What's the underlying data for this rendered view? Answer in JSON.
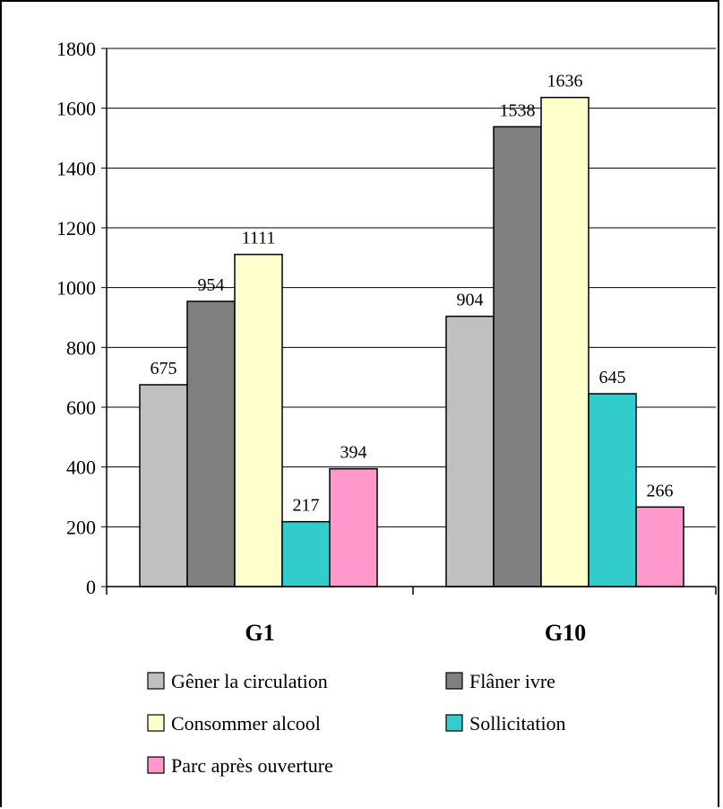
{
  "chart_data": {
    "type": "bar",
    "categories": [
      "G1",
      "G10"
    ],
    "series": [
      {
        "name": "Gêner la circulation",
        "values": [
          675,
          904
        ],
        "color": "#c0c0c0"
      },
      {
        "name": "Flâner ivre",
        "values": [
          954,
          1538
        ],
        "color": "#808080"
      },
      {
        "name": "Consommer alcool",
        "values": [
          1111,
          1636
        ],
        "color": "#ffffcc"
      },
      {
        "name": "Sollicitation",
        "values": [
          217,
          645
        ],
        "color": "#33cccc"
      },
      {
        "name": "Parc après ouverture",
        "values": [
          394,
          266
        ],
        "color": "#ff99cc"
      }
    ],
    "ylim": [
      0,
      1800
    ],
    "yticks": [
      0,
      200,
      400,
      600,
      800,
      1000,
      1200,
      1400,
      1600,
      1800
    ],
    "grid": true,
    "legend_position": "bottom",
    "title": "",
    "xlabel": "",
    "ylabel": ""
  }
}
